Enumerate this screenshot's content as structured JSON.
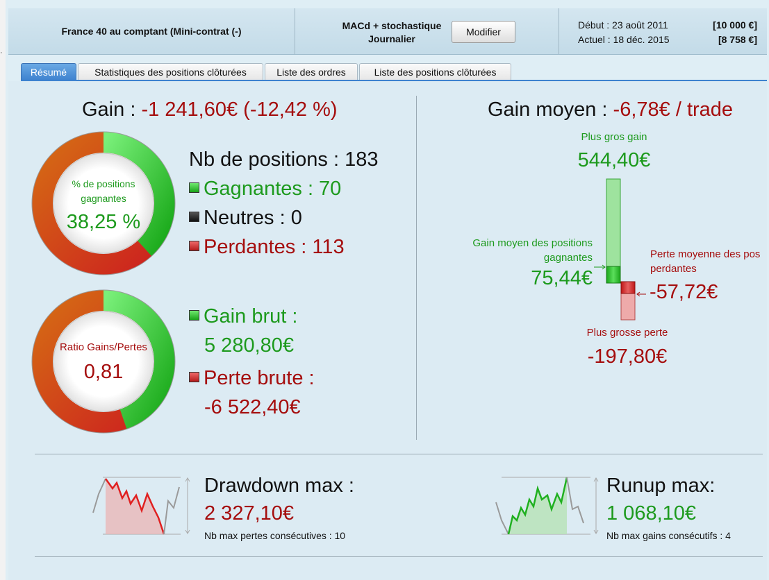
{
  "header": {
    "instrument": "France 40 au comptant (Mini-contrat  (-)",
    "strategy_line1": "MACd + stochastique",
    "strategy_line2": "Journalier",
    "modify_button": "Modifier",
    "start_label": "Début : 23 août 2011",
    "start_capital": "[10 000 €]",
    "current_label": "Actuel : 18 déc. 2015",
    "current_capital": "[8 758 €]"
  },
  "tabs": [
    {
      "label": "Résumé",
      "active": true
    },
    {
      "label": "Statistiques des positions clôturées",
      "active": false
    },
    {
      "label": "Liste des ordres",
      "active": false
    },
    {
      "label": "Liste des positions clôturées",
      "active": false
    }
  ],
  "summary": {
    "gain_label": "Gain :",
    "gain_value": "-1 241,60€ (-12,42 %)",
    "win_ring": {
      "caption_line1": "% de positions",
      "caption_line2": "gagnantes",
      "value": "38,25 %",
      "fraction": 0.3825
    },
    "positions_label": "Nb de positions : 183",
    "winners": "Gagnantes : 70",
    "neutral": "Neutres : 0",
    "losers": "Perdantes : 113",
    "ratio_ring": {
      "caption": "Ratio Gains/Pertes",
      "value": "0,81",
      "fraction": 0.4474
    },
    "gross_gain_label": "Gain brut :",
    "gross_gain_value": "5 280,80€",
    "gross_loss_label": "Perte brute :",
    "gross_loss_value": "-6 522,40€"
  },
  "average": {
    "title_label": "Gain moyen :",
    "title_value": "-6,78€ / trade",
    "biggest_gain_label": "Plus gros gain",
    "biggest_gain_value": "544,40€",
    "avg_win_label_line1": "Gain moyen des positions",
    "avg_win_label_line2": "gagnantes",
    "avg_win_value": "75,44€",
    "avg_loss_label_line1": "Perte moyenne des pos",
    "avg_loss_label_line2": "perdantes",
    "avg_loss_value": "-57,72€",
    "biggest_loss_label": "Plus grosse perte",
    "biggest_loss_value": "-197,80€"
  },
  "drawdown": {
    "title": "Drawdown max :",
    "value": "2 327,10€",
    "sub": "Nb max pertes consécutives : 10"
  },
  "runup": {
    "title": "Runup max:",
    "value": "1 068,10€",
    "sub": "Nb max gains consécutifs : 4"
  },
  "colors": {
    "gain_green": "#1d9a1d",
    "loss_red": "#a50d0d",
    "tab_active": "#3d82cf",
    "panel_bg": "#dcebf3"
  }
}
